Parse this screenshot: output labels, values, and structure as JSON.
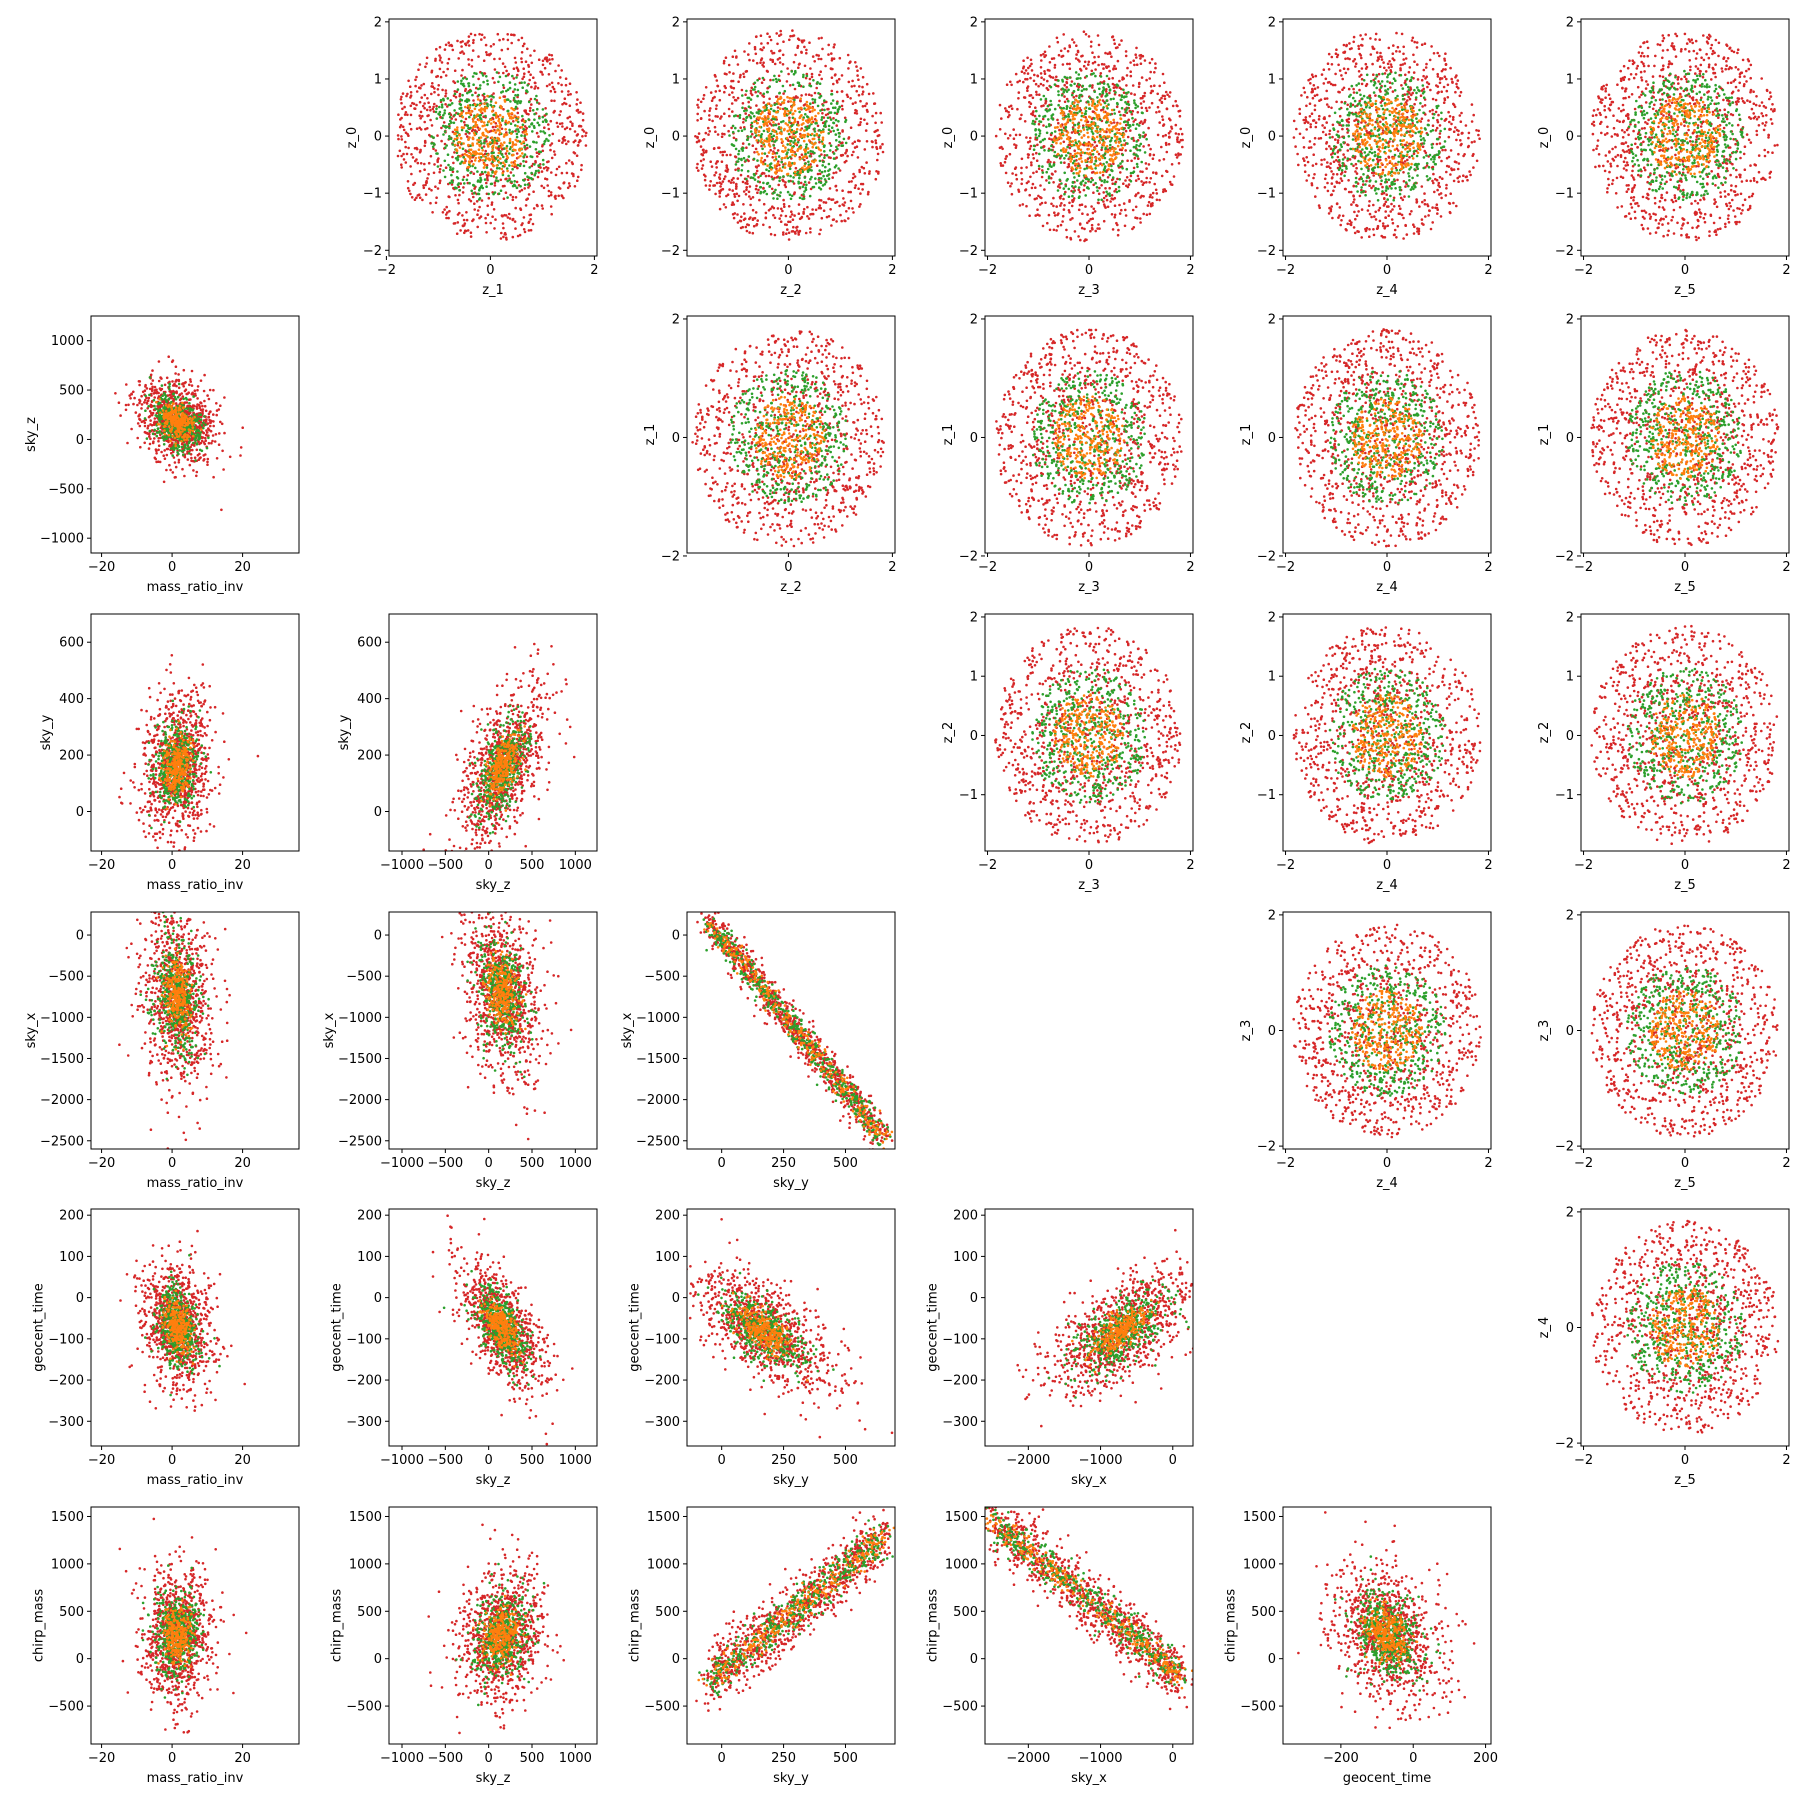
{
  "chart_data": {
    "type": "scatter",
    "layout": "lower-and-upper-triangle corner grid",
    "series_colors": [
      "#d62728",
      "#2ca02c",
      "#ff7f0e"
    ],
    "variables": {
      "z_0": {
        "label": "z_0",
        "ticks": [
          -2,
          -1,
          0,
          1,
          2
        ],
        "ticklabels": [
          "−2",
          "−1",
          "0",
          "1",
          "2"
        ],
        "lim": [
          -2.1,
          2.05
        ]
      },
      "z_1": {
        "label": "z_1",
        "ticks": [
          -2,
          0,
          2
        ],
        "ticklabels": [
          "−2",
          "0",
          "2"
        ],
        "lim": [
          -1.95,
          2.05
        ]
      },
      "z_2": {
        "label": "z_2",
        "ticks": [
          0,
          2
        ],
        "ticklabels": [
          "0",
          "2"
        ],
        "lim": [
          -1.95,
          2.05
        ]
      },
      "z_3": {
        "label": "z_3",
        "ticks": [
          -2,
          0,
          2
        ],
        "ticklabels": [
          "−2",
          "0",
          "2"
        ],
        "lim": [
          -2.05,
          2.05
        ]
      },
      "z_4": {
        "label": "z_4",
        "ticks": [
          -2,
          0,
          2
        ],
        "ticklabels": [
          "−2",
          "0",
          "2"
        ],
        "lim": [
          -2.05,
          2.05
        ]
      },
      "z_5": {
        "label": "z_5",
        "ticks": [
          -2,
          0,
          2
        ],
        "ticklabels": [
          "−2",
          "0",
          "2"
        ],
        "lim": [
          -2.05,
          2.05
        ]
      },
      "mass_ratio_inv": {
        "label": "mass_ratio_inv",
        "ticks": [
          -20,
          0,
          20
        ],
        "ticklabels": [
          "−20",
          "0",
          "20"
        ],
        "lim": [
          -23,
          36
        ]
      },
      "sky_z": {
        "label": "sky_z",
        "ticks": [
          -1000,
          -500,
          0,
          500,
          1000
        ],
        "ticklabels": [
          "−1000",
          "−500",
          "0",
          "500",
          "1000"
        ],
        "lim": [
          -1150,
          1250
        ]
      },
      "sky_y": {
        "label": "sky_y",
        "ticks": [
          0,
          200,
          400,
          600
        ],
        "ticklabels": [
          "0",
          "200",
          "400",
          "600"
        ],
        "lim": [
          -140,
          700
        ]
      },
      "sky_x": {
        "label": "sky_x",
        "ticks": [
          -2500,
          -2000,
          -1500,
          -1000,
          -500,
          0
        ],
        "ticklabels": [
          "−2500",
          "−2000",
          "−1500",
          "−1000",
          "−500",
          "0"
        ],
        "lim": [
          -2600,
          280
        ]
      },
      "geocent_time": {
        "label": "geocent_time",
        "ticks": [
          -300,
          -200,
          -100,
          0,
          100,
          200
        ],
        "ticklabels": [
          "−300",
          "−200",
          "−100",
          "0",
          "100",
          "200"
        ],
        "lim": [
          -360,
          215
        ]
      },
      "chirp_mass": {
        "label": "chirp_mass",
        "ticks": [
          -500,
          0,
          500,
          1000,
          1500
        ],
        "ticklabels": [
          "−500",
          "0",
          "500",
          "1000",
          "1500"
        ],
        "lim": [
          -900,
          1600
        ]
      }
    },
    "x_tick_overrides": {
      "sky_y": {
        "ticks": [
          0,
          250,
          500
        ],
        "ticklabels": [
          "0",
          "250",
          "500"
        ]
      },
      "sky_x": {
        "ticks": [
          -2000,
          -1000,
          0
        ],
        "ticklabels": [
          "−2000",
          "−1000",
          "0"
        ]
      },
      "geocent_time": {
        "ticks": [
          -200,
          0,
          200
        ],
        "ticklabels": [
          "−200",
          "0",
          "200"
        ]
      }
    },
    "y_tick_overrides": {
      "z_2": {
        "ticks": [
          -1,
          0,
          1,
          2
        ],
        "ticklabels": [
          "−1",
          "0",
          "1",
          "2"
        ],
        "lim": [
          -1.95,
          2.05
        ]
      }
    },
    "panels": [
      {
        "id": "z1-z0",
        "row": 0,
        "col": 1,
        "x": "z_1",
        "y": "z_0",
        "model": {
          "type": "disk",
          "r": 1.85
        }
      },
      {
        "id": "z2-z0",
        "row": 0,
        "col": 2,
        "x": "z_2",
        "y": "z_0",
        "model": {
          "type": "disk",
          "r": 1.85
        }
      },
      {
        "id": "z3-z0",
        "row": 0,
        "col": 3,
        "x": "z_3",
        "y": "z_0",
        "model": {
          "type": "disk",
          "r": 1.85
        }
      },
      {
        "id": "z4-z0",
        "row": 0,
        "col": 4,
        "x": "z_4",
        "y": "z_0",
        "model": {
          "type": "disk",
          "r": 1.85
        }
      },
      {
        "id": "z5-z0",
        "row": 0,
        "col": 5,
        "x": "z_5",
        "y": "z_0",
        "model": {
          "type": "disk",
          "r": 1.85
        }
      },
      {
        "id": "mri-skyz",
        "row": 1,
        "col": 0,
        "x": "mass_ratio_inv",
        "y": "sky_z",
        "model": {
          "type": "gauss",
          "mx": 1.5,
          "my": 180,
          "sx": 5.5,
          "sy": 220,
          "rho": -0.25
        }
      },
      {
        "id": "z2-z1",
        "row": 1,
        "col": 2,
        "x": "z_2",
        "y": "z_1",
        "model": {
          "type": "disk",
          "r": 1.85
        }
      },
      {
        "id": "z3-z1",
        "row": 1,
        "col": 3,
        "x": "z_3",
        "y": "z_1",
        "model": {
          "type": "disk",
          "r": 1.85
        }
      },
      {
        "id": "z4-z1",
        "row": 1,
        "col": 4,
        "x": "z_4",
        "y": "z_1",
        "model": {
          "type": "disk",
          "r": 1.85
        }
      },
      {
        "id": "z5-z1",
        "row": 1,
        "col": 5,
        "x": "z_5",
        "y": "z_1",
        "model": {
          "type": "disk",
          "r": 1.85
        }
      },
      {
        "id": "mri-skyy",
        "row": 2,
        "col": 0,
        "x": "mass_ratio_inv",
        "y": "sky_y",
        "model": {
          "type": "gauss",
          "mx": 1.5,
          "my": 160,
          "sx": 5,
          "sy": 130,
          "rho": 0.15
        }
      },
      {
        "id": "skyz-skyy",
        "row": 2,
        "col": 1,
        "x": "sky_z",
        "y": "sky_y",
        "model": {
          "type": "gauss",
          "mx": 150,
          "my": 150,
          "sx": 250,
          "sy": 140,
          "rho": 0.55
        }
      },
      {
        "id": "z3-z2",
        "row": 2,
        "col": 3,
        "x": "z_3",
        "y": "z_2",
        "model": {
          "type": "disk",
          "r": 1.85
        }
      },
      {
        "id": "z4-z2",
        "row": 2,
        "col": 4,
        "x": "z_4",
        "y": "z_2",
        "model": {
          "type": "disk",
          "r": 1.85
        }
      },
      {
        "id": "z5-z2",
        "row": 2,
        "col": 5,
        "x": "z_5",
        "y": "z_2",
        "model": {
          "type": "disk",
          "r": 1.85
        }
      },
      {
        "id": "mri-skyx",
        "row": 3,
        "col": 0,
        "x": "mass_ratio_inv",
        "y": "sky_x",
        "model": {
          "type": "gauss",
          "mx": 1.5,
          "my": -750,
          "sx": 5,
          "sy": 550,
          "rho": -0.15
        }
      },
      {
        "id": "skyz-skyx",
        "row": 3,
        "col": 1,
        "x": "sky_z",
        "y": "sky_x",
        "model": {
          "type": "gauss",
          "mx": 150,
          "my": -700,
          "sx": 230,
          "sy": 550,
          "rho": -0.3
        }
      },
      {
        "id": "skyy-skyx",
        "row": 3,
        "col": 2,
        "x": "sky_y",
        "y": "sky_x",
        "model": {
          "type": "line",
          "x0": -50,
          "x1": 660,
          "y0": 150,
          "y1": -2480,
          "noise": 110
        }
      },
      {
        "id": "z4-z3",
        "row": 3,
        "col": 4,
        "x": "z_4",
        "y": "z_3",
        "model": {
          "type": "disk",
          "r": 1.85
        }
      },
      {
        "id": "z5-z3",
        "row": 3,
        "col": 5,
        "x": "z_5",
        "y": "z_3",
        "model": {
          "type": "disk",
          "r": 1.85
        }
      },
      {
        "id": "mri-gt",
        "row": 4,
        "col": 0,
        "x": "mass_ratio_inv",
        "y": "geocent_time",
        "model": {
          "type": "gauss",
          "mx": 1.5,
          "my": -70,
          "sx": 5,
          "sy": 75,
          "rho": -0.2
        }
      },
      {
        "id": "skyz-gt",
        "row": 4,
        "col": 1,
        "x": "sky_z",
        "y": "geocent_time",
        "model": {
          "type": "gauss",
          "mx": 150,
          "my": -70,
          "sx": 250,
          "sy": 80,
          "rho": -0.6
        }
      },
      {
        "id": "skyy-gt",
        "row": 4,
        "col": 2,
        "x": "sky_y",
        "y": "geocent_time",
        "model": {
          "type": "gauss",
          "mx": 170,
          "my": -80,
          "sx": 140,
          "sy": 75,
          "rho": -0.6
        }
      },
      {
        "id": "skyx-gt",
        "row": 4,
        "col": 3,
        "x": "sky_x",
        "y": "geocent_time",
        "model": {
          "type": "gauss",
          "mx": -700,
          "my": -80,
          "sx": 520,
          "sy": 75,
          "rho": 0.6
        }
      },
      {
        "id": "z5-z4",
        "row": 4,
        "col": 5,
        "x": "z_5",
        "y": "z_4",
        "model": {
          "type": "disk",
          "r": 1.85
        }
      },
      {
        "id": "mri-cm",
        "row": 5,
        "col": 0,
        "x": "mass_ratio_inv",
        "y": "chirp_mass",
        "model": {
          "type": "gauss",
          "mx": 1.5,
          "my": 250,
          "sx": 5,
          "sy": 360,
          "rho": 0.05
        }
      },
      {
        "id": "skyz-cm",
        "row": 5,
        "col": 1,
        "x": "sky_z",
        "y": "chirp_mass",
        "model": {
          "type": "gauss",
          "mx": 150,
          "my": 250,
          "sx": 250,
          "sy": 360,
          "rho": 0.15
        }
      },
      {
        "id": "skyy-cm",
        "row": 5,
        "col": 2,
        "x": "sky_y",
        "y": "chirp_mass",
        "model": {
          "type": "line",
          "x0": -50,
          "x1": 660,
          "y0": -250,
          "y1": 1300,
          "noise": 170
        }
      },
      {
        "id": "skyx-cm",
        "row": 5,
        "col": 3,
        "x": "sky_x",
        "y": "chirp_mass",
        "model": {
          "type": "line",
          "x0": -2500,
          "x1": 150,
          "y0": 1450,
          "y1": -200,
          "noise": 160
        }
      },
      {
        "id": "gt-cm",
        "row": 5,
        "col": 4,
        "x": "geocent_time",
        "y": "chirp_mass",
        "model": {
          "type": "gauss",
          "mx": -70,
          "my": 250,
          "sx": 75,
          "sy": 360,
          "rho": -0.3
        }
      }
    ]
  }
}
